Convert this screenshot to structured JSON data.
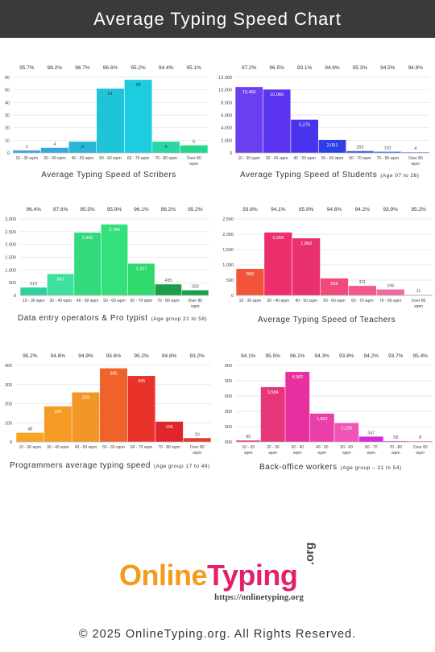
{
  "page": {
    "title": "Average Typing Speed Chart",
    "logo": {
      "online": "Online",
      "typing": "Typing",
      "org": ".org",
      "url": "https://onlinetyping.org"
    },
    "footer": "© 2025 OnlineTyping.org. All Rights Reserved."
  },
  "chart_data": [
    {
      "type": "bar",
      "title": "Average Typing Speed of Scribers",
      "subtitle": "",
      "categories": [
        "10 - 30 wpm",
        "30 - 40 wpm",
        "40 - 50 wpm",
        "50 - 60 wpm",
        "60 - 70 wpm",
        "70 - 80 wpm",
        "Over 80 wpm"
      ],
      "values": [
        2,
        4,
        9,
        51,
        58,
        9,
        6
      ],
      "accuracy": [
        "95.7%",
        "98.2%",
        "96.7%",
        "96.6%",
        "95.2%",
        "94.4%",
        "95.1%"
      ],
      "colors": [
        "#3aa3e3",
        "#35a8e0",
        "#2ab7d6",
        "#1fc4d9",
        "#1dcce0",
        "#2bd6a8",
        "#22d98b"
      ],
      "yticks": [
        0,
        10,
        20,
        30,
        40,
        50,
        60
      ],
      "ylim": [
        0,
        60
      ]
    },
    {
      "type": "bar",
      "title": "Average Typing Speed of Students",
      "subtitle": "(Age 07 to 28)",
      "categories": [
        "10 - 30 wpm",
        "30 - 40 wpm",
        "40 - 50 wpm",
        "50 - 60 wpm",
        "60 - 70 wpm",
        "70 - 80 wpm",
        "Over 80 wpm"
      ],
      "values": [
        10450,
        10060,
        5275,
        2051,
        293,
        192,
        4
      ],
      "accuracy": [
        "97.2%",
        "96.5%",
        "93.1%",
        "94.6%",
        "95.3%",
        "94.5%",
        "94.8%"
      ],
      "colors": [
        "#6b3ff0",
        "#5a34ef",
        "#4a33ec",
        "#2f3fe8",
        "#3a52e6",
        "#4c6be8",
        "#5a86ec"
      ],
      "yticks": [
        0,
        2000,
        4000,
        6000,
        8000,
        10000,
        12000
      ],
      "ytick_labels": [
        "0",
        "2,000",
        "4,000",
        "6,000",
        "8,000",
        "10,000",
        "12,000"
      ],
      "value_labels": [
        "10,450",
        "10,060",
        "5,275",
        "2,051",
        "293",
        "192",
        "4"
      ],
      "ylim": [
        0,
        12000
      ]
    },
    {
      "type": "bar",
      "title": "Data entry operators & Pro typist",
      "subtitle": "(Age group 21 to 58)",
      "categories": [
        "10 - 30 wpm",
        "30 - 40 wpm",
        "40 - 50 wpm",
        "50 - 60 wpm",
        "60 - 70 wpm",
        "70 - 80 wpm",
        "Over 80 wpm"
      ],
      "values": [
        310,
        841,
        2465,
        2784,
        1247,
        435,
        203
      ],
      "accuracy": [
        "96.4%",
        "97.6%",
        "95.5%",
        "95.9%",
        "96.1%",
        "96.2%",
        "95.2%"
      ],
      "colors": [
        "#2fd0a0",
        "#3ee0a0",
        "#33d97c",
        "#34e07a",
        "#2fd96c",
        "#1e9e4a",
        "#15a24c"
      ],
      "yticks": [
        0,
        500,
        1000,
        1500,
        2000,
        2500,
        3000
      ],
      "ytick_labels": [
        "0",
        "500",
        "1,000",
        "1,500",
        "2,000",
        "2,500",
        "3,000"
      ],
      "value_labels": [
        "310",
        "841",
        "2,465",
        "2,784",
        "1,247",
        "435",
        "203"
      ],
      "ylim": [
        0,
        3000
      ]
    },
    {
      "type": "bar",
      "title": "Average Typing Speed of Teachers",
      "subtitle": "",
      "categories": [
        "10 - 30 wpm",
        "30 - 40 wpm",
        "40 - 50 wpm",
        "50 - 60 wpm",
        "60 - 70 wpm",
        "70 - 80 wpm",
        "Over 80 wpm"
      ],
      "values": [
        868,
        2058,
        1868,
        556,
        311,
        196,
        11
      ],
      "accuracy": [
        "93.8%",
        "94.1%",
        "95.9%",
        "94.6%",
        "94.2%",
        "93.9%",
        "95.2%"
      ],
      "colors": [
        "#f2553b",
        "#ec2f6a",
        "#e8316e",
        "#f04a7c",
        "#f0578a",
        "#ee6aa0",
        "#f08ab4"
      ],
      "yticks": [
        0,
        500,
        1000,
        1500,
        2000,
        2500
      ],
      "ytick_labels": [
        "0",
        "500",
        "1,000",
        "1,500",
        "2,000",
        "2,500"
      ],
      "value_labels": [
        "868",
        "2,058",
        "1,868",
        "556",
        "311",
        "196",
        "11"
      ],
      "ylim": [
        0,
        2500
      ]
    },
    {
      "type": "bar",
      "title": "Programmers average typing speed",
      "subtitle": "(Age group 17 to 49)",
      "categories": [
        "10 - 30 wpm",
        "30 - 40 wpm",
        "40 - 50 wpm",
        "50 - 60 wpm",
        "60 - 70 wpm",
        "70 - 80 wpm",
        "Over 80 wpm"
      ],
      "values": [
        48,
        186,
        259,
        385,
        345,
        106,
        20
      ],
      "accuracy": [
        "95.2%",
        "94.8%",
        "94.9%",
        "95.6%",
        "95.2%",
        "94.8%",
        "93.2%"
      ],
      "colors": [
        "#f6a623",
        "#f59a25",
        "#f29627",
        "#f0622c",
        "#e8322a",
        "#e0262a",
        "#e53a2c"
      ],
      "yticks": [
        0,
        100,
        200,
        300,
        400
      ],
      "ylim": [
        0,
        400
      ]
    },
    {
      "type": "bar",
      "title": "Back-office workers",
      "subtitle": "(Age group – 21 to 54)",
      "categories": [
        "10 - 20 wpm",
        "20 - 30 wpm",
        "30 - 40 wpm",
        "40 - 50 wpm",
        "50 - 60 wpm",
        "60 - 70 wpm",
        "70 - 80 wpm",
        "Over 80 wpm"
      ],
      "values": [
        95,
        3584,
        4582,
        1852,
        1235,
        347,
        58,
        8
      ],
      "accuracy": [
        "94.1%",
        "95.5%",
        "96.1%",
        "94.3%",
        "93.8%",
        "94.2%",
        "93.7%",
        "95.4%"
      ],
      "colors": [
        "#e8368a",
        "#e8367a",
        "#e82fa0",
        "#ea3fa6",
        "#ee55b4",
        "#d52bd8",
        "#e06ad0",
        "#e87ac8"
      ],
      "yticks": [
        0,
        1000,
        2000,
        3000,
        4000,
        5000
      ],
      "ytick_labels": [
        "000",
        "000",
        "000",
        "000",
        "000",
        "000"
      ],
      "value_labels": [
        "95",
        "3,584",
        "4,582",
        "1,852",
        "1,235",
        "347",
        "58",
        "8"
      ],
      "ylim": [
        0,
        5000
      ]
    }
  ]
}
